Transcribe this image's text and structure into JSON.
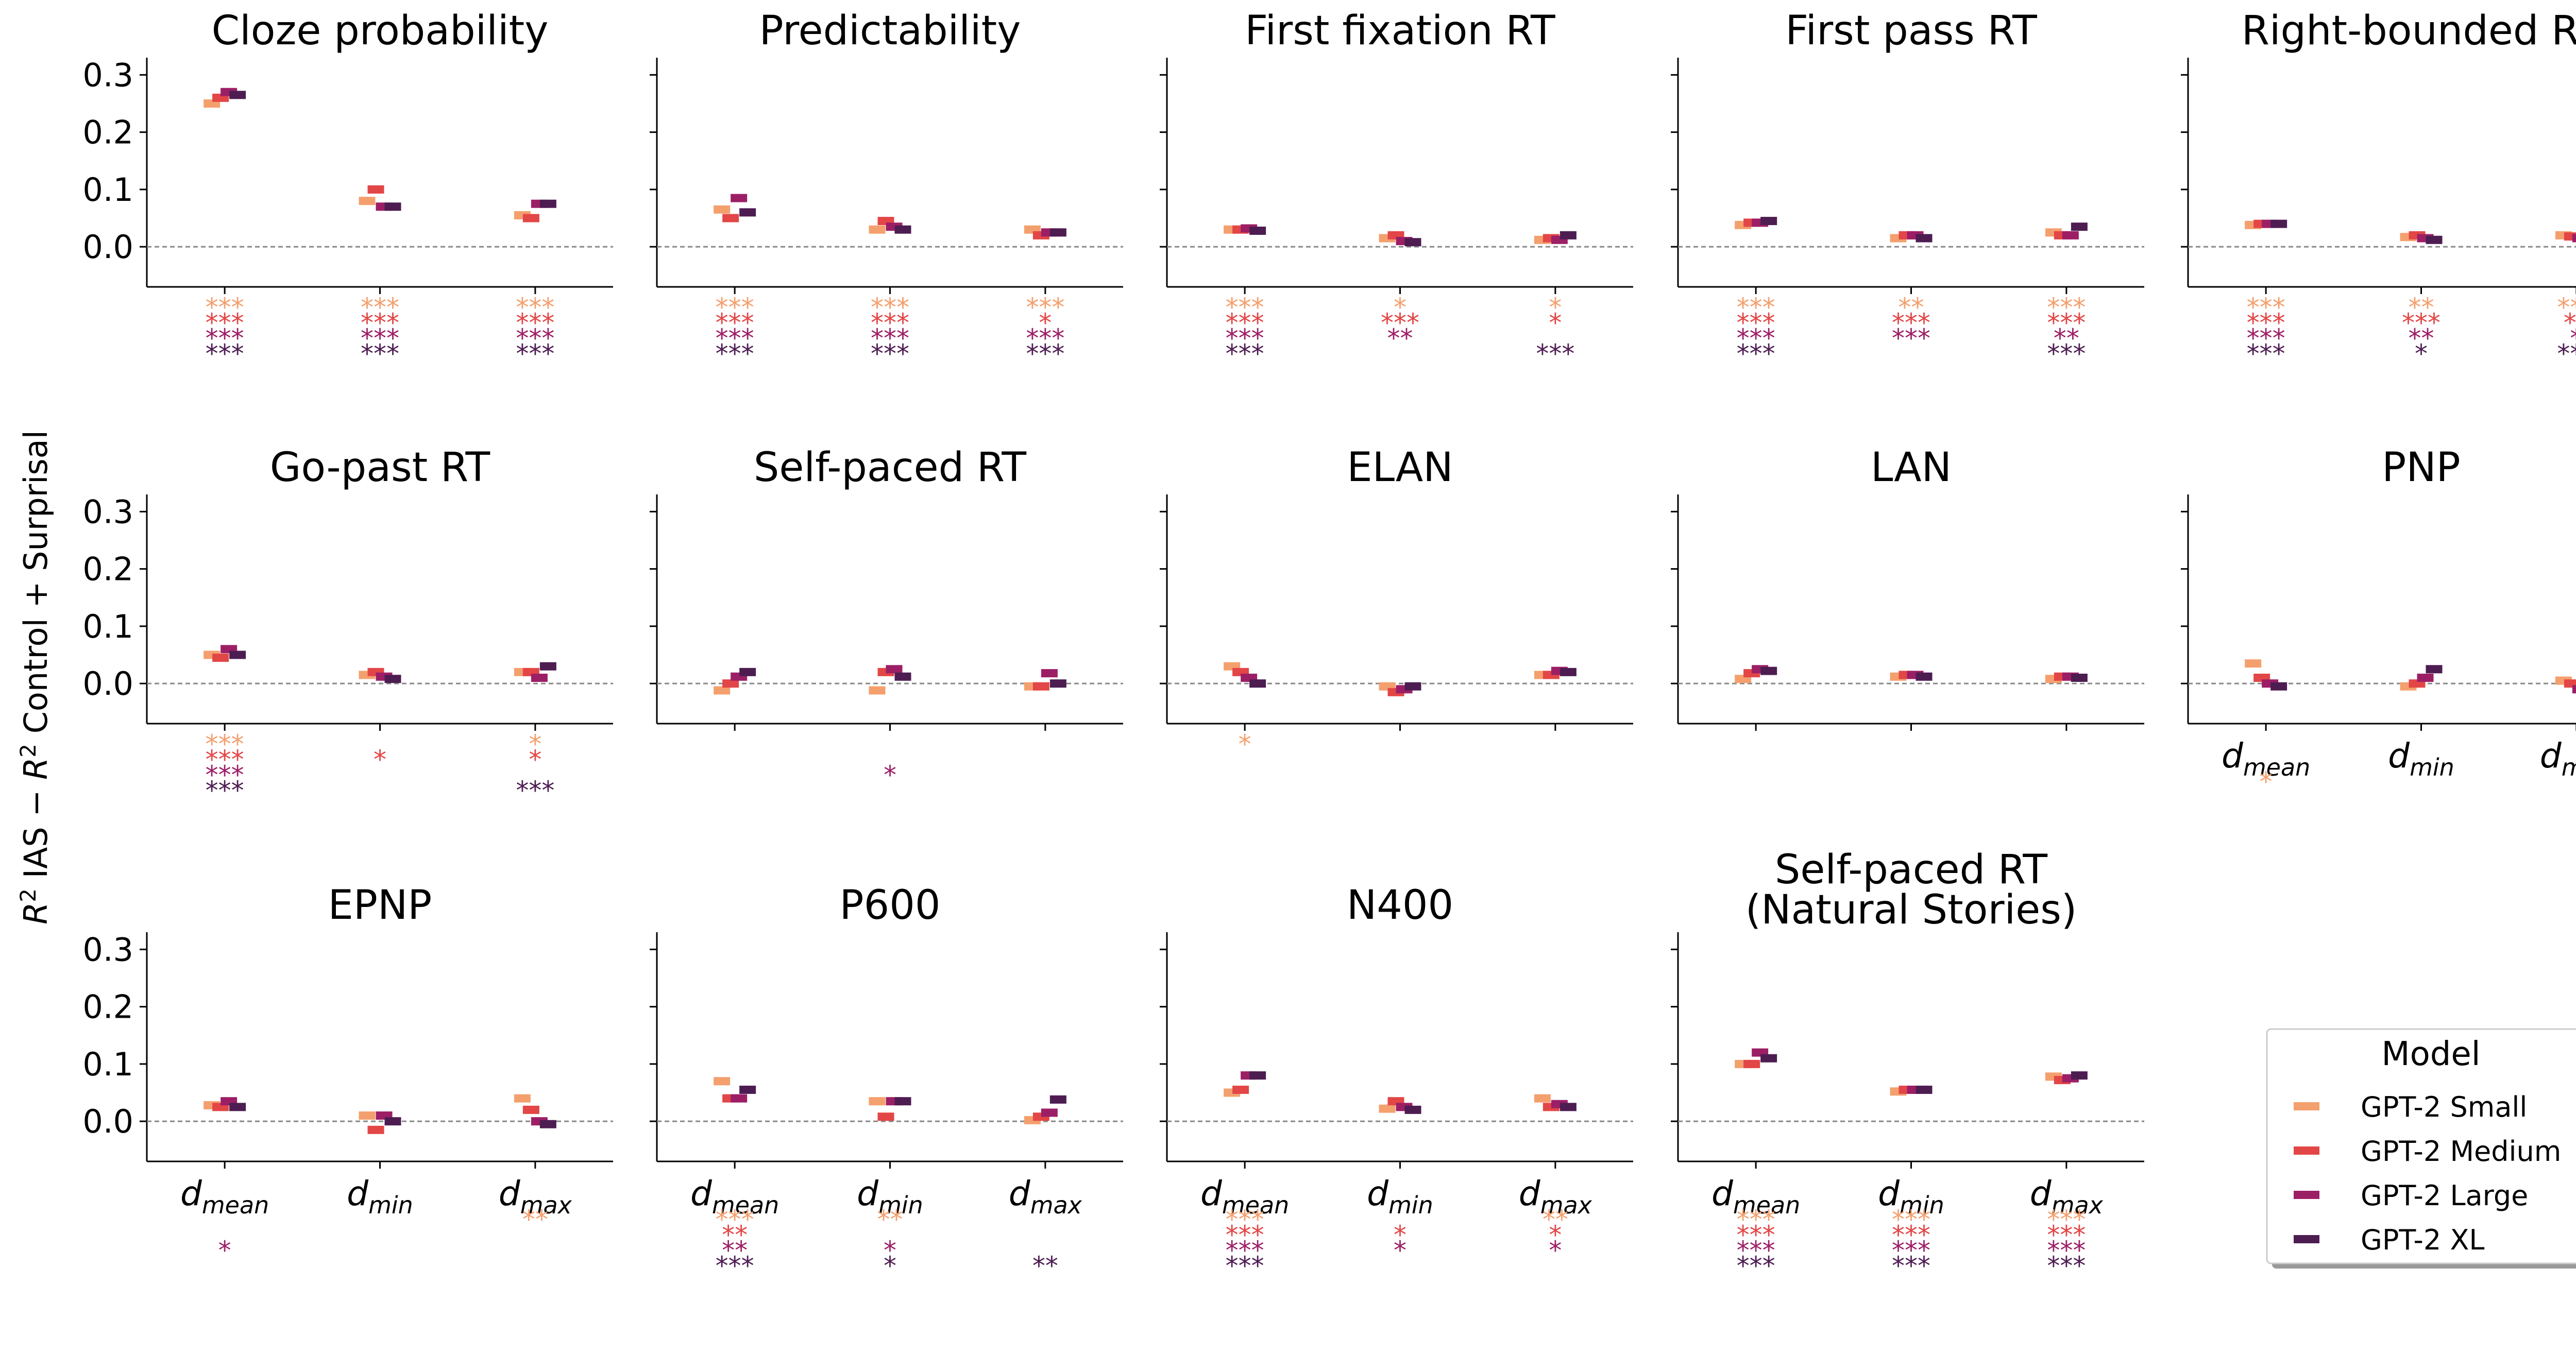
{
  "figure": {
    "ylabel": {
      "pre": "R",
      "sup": "2",
      "mid": " IAS  −  ",
      "pre2": "R",
      "sup2": "2",
      "post": " Control + Surprisal"
    }
  },
  "chart_data": {
    "type": "scatter",
    "y_ticks": [
      "0.0",
      "0.1",
      "0.2",
      "0.3"
    ],
    "ylim": [
      -0.07,
      0.33
    ],
    "x_tick_labels": [
      {
        "base": "d",
        "sub": "mean"
      },
      {
        "base": "d",
        "sub": "min"
      },
      {
        "base": "d",
        "sub": "max"
      }
    ],
    "reference_line": 0.0,
    "series": [
      {
        "name": "GPT-2 Small",
        "color": "#f4a06e"
      },
      {
        "name": "GPT-2 Medium",
        "color": "#e34646"
      },
      {
        "name": "GPT-2 Large",
        "color": "#9c1f66"
      },
      {
        "name": "GPT-2 XL",
        "color": "#4d1d52"
      }
    ],
    "legend": {
      "title": "Model",
      "placement": "lower-right"
    },
    "panels": [
      {
        "title": [
          "Cloze probability"
        ],
        "values": [
          [
            0.25,
            0.26,
            0.27,
            0.265
          ],
          [
            0.08,
            0.1,
            0.07,
            0.07
          ],
          [
            0.055,
            0.05,
            0.075,
            0.075
          ]
        ],
        "stars": [
          [
            "***",
            "***",
            "***",
            "***"
          ],
          [
            "***",
            "***",
            "***",
            "***"
          ],
          [
            "***",
            "***",
            "***",
            "***"
          ]
        ]
      },
      {
        "title": [
          "Predictability"
        ],
        "values": [
          [
            0.065,
            0.05,
            0.085,
            0.06
          ],
          [
            0.03,
            0.045,
            0.035,
            0.03
          ],
          [
            0.03,
            0.02,
            0.025,
            0.025
          ]
        ],
        "stars": [
          [
            "***",
            "***",
            "***",
            "***"
          ],
          [
            "***",
            "***",
            "***",
            "***"
          ],
          [
            "***",
            "*",
            "***",
            "***"
          ]
        ]
      },
      {
        "title": [
          "First fixation RT"
        ],
        "values": [
          [
            0.03,
            0.03,
            0.032,
            0.028
          ],
          [
            0.015,
            0.02,
            0.01,
            0.008
          ],
          [
            0.012,
            0.015,
            0.012,
            0.02
          ]
        ],
        "stars": [
          [
            "***",
            "***",
            "***",
            "***"
          ],
          [
            "*",
            "***",
            "**",
            ""
          ],
          [
            "*",
            "*",
            "",
            "***"
          ]
        ]
      },
      {
        "title": [
          "First pass RT"
        ],
        "values": [
          [
            0.038,
            0.042,
            0.042,
            0.045
          ],
          [
            0.015,
            0.02,
            0.02,
            0.015
          ],
          [
            0.025,
            0.02,
            0.02,
            0.035
          ]
        ],
        "stars": [
          [
            "***",
            "***",
            "***",
            "***"
          ],
          [
            "**",
            "***",
            "***",
            ""
          ],
          [
            "***",
            "***",
            "**",
            "***"
          ]
        ]
      },
      {
        "title": [
          "Right-bounded RT"
        ],
        "values": [
          [
            0.038,
            0.04,
            0.04,
            0.04
          ],
          [
            0.017,
            0.02,
            0.015,
            0.012
          ],
          [
            0.02,
            0.018,
            0.015,
            0.03
          ]
        ],
        "stars": [
          [
            "***",
            "***",
            "***",
            "***"
          ],
          [
            "**",
            "***",
            "**",
            "*"
          ],
          [
            "***",
            "**",
            "*",
            "***"
          ]
        ]
      },
      {
        "title": [
          "Go-past RT"
        ],
        "values": [
          [
            0.05,
            0.045,
            0.06,
            0.05
          ],
          [
            0.015,
            0.02,
            0.012,
            0.008
          ],
          [
            0.02,
            0.02,
            0.01,
            0.03
          ]
        ],
        "stars": [
          [
            "***",
            "***",
            "***",
            "***"
          ],
          [
            "",
            "*",
            "",
            ""
          ],
          [
            "*",
            "*",
            "",
            "***"
          ]
        ]
      },
      {
        "title": [
          "Self-paced RT"
        ],
        "values": [
          [
            -0.012,
            0.0,
            0.012,
            0.02
          ],
          [
            -0.012,
            0.02,
            0.025,
            0.012
          ],
          [
            -0.005,
            -0.005,
            0.018,
            0.0
          ]
        ],
        "stars": [
          [
            "",
            "",
            "",
            ""
          ],
          [
            "",
            "",
            "*",
            ""
          ],
          [
            "",
            "",
            "",
            ""
          ]
        ]
      },
      {
        "title": [
          "ELAN"
        ],
        "values": [
          [
            0.03,
            0.02,
            0.01,
            0.0
          ],
          [
            -0.005,
            -0.015,
            -0.01,
            -0.005
          ],
          [
            0.015,
            0.015,
            0.022,
            0.02
          ]
        ],
        "stars": [
          [
            "*",
            "",
            "",
            ""
          ],
          [
            "",
            "",
            "",
            ""
          ],
          [
            "",
            "",
            "",
            ""
          ]
        ]
      },
      {
        "title": [
          "LAN"
        ],
        "values": [
          [
            0.008,
            0.018,
            0.025,
            0.022
          ],
          [
            0.012,
            0.015,
            0.015,
            0.012
          ],
          [
            0.008,
            0.012,
            0.012,
            0.01
          ]
        ],
        "stars": [
          [
            "",
            "",
            "",
            ""
          ],
          [
            "",
            "",
            "",
            ""
          ],
          [
            "",
            "",
            "",
            ""
          ]
        ]
      },
      {
        "title": [
          "PNP"
        ],
        "values": [
          [
            0.035,
            0.01,
            0.0,
            -0.005
          ],
          [
            -0.005,
            0.0,
            0.01,
            0.025
          ],
          [
            0.005,
            0.0,
            -0.01,
            0.012
          ]
        ],
        "stars": [
          [
            "*",
            "",
            "",
            ""
          ],
          [
            "",
            "",
            "",
            ""
          ],
          [
            "",
            "",
            "",
            ""
          ]
        ]
      },
      {
        "title": [
          "EPNP"
        ],
        "values": [
          [
            0.028,
            0.025,
            0.035,
            0.025
          ],
          [
            0.01,
            -0.015,
            0.01,
            0.0
          ],
          [
            0.04,
            0.02,
            0.0,
            -0.005
          ]
        ],
        "stars": [
          [
            "",
            "",
            "*",
            ""
          ],
          [
            "",
            "",
            "",
            ""
          ],
          [
            "**",
            "",
            "",
            ""
          ]
        ]
      },
      {
        "title": [
          "P600"
        ],
        "values": [
          [
            0.07,
            0.04,
            0.04,
            0.055
          ],
          [
            0.035,
            0.008,
            0.035,
            0.035
          ],
          [
            0.002,
            0.008,
            0.015,
            0.038
          ]
        ],
        "stars": [
          [
            "***",
            "**",
            "**",
            "***"
          ],
          [
            "**",
            "",
            "*",
            "*"
          ],
          [
            "",
            "",
            "",
            "**"
          ]
        ]
      },
      {
        "title": [
          "N400"
        ],
        "values": [
          [
            0.05,
            0.055,
            0.08,
            0.08
          ],
          [
            0.022,
            0.035,
            0.025,
            0.02
          ],
          [
            0.04,
            0.025,
            0.03,
            0.025
          ]
        ],
        "stars": [
          [
            "***",
            "***",
            "***",
            "***"
          ],
          [
            "",
            "*",
            "*",
            ""
          ],
          [
            "**",
            "*",
            "*",
            ""
          ]
        ]
      },
      {
        "title": [
          "Self-paced RT",
          "(Natural Stories)"
        ],
        "values": [
          [
            0.1,
            0.1,
            0.12,
            0.11
          ],
          [
            0.052,
            0.055,
            0.055,
            0.055
          ],
          [
            0.078,
            0.072,
            0.075,
            0.08
          ]
        ],
        "stars": [
          [
            "***",
            "***",
            "***",
            "***"
          ],
          [
            "***",
            "***",
            "***",
            "***"
          ],
          [
            "***",
            "***",
            "***",
            "***"
          ]
        ]
      }
    ]
  }
}
